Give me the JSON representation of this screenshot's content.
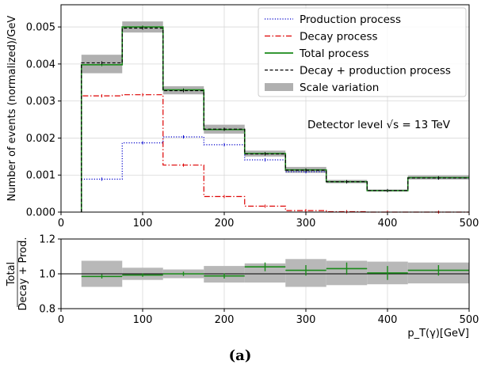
{
  "chart_data": [
    {
      "type": "line",
      "x_edges": [
        25,
        75,
        125,
        175,
        225,
        275,
        325,
        375,
        425,
        500
      ],
      "xlim": [
        0,
        500
      ],
      "ylim": [
        0,
        0.0056
      ],
      "xticks": [
        "0",
        "100",
        "200",
        "300",
        "400",
        "500"
      ],
      "yticks": [
        "0.000",
        "0.001",
        "0.002",
        "0.003",
        "0.004",
        "0.005"
      ],
      "ylabel": "Number of events (normalized)/GeV",
      "grid": true,
      "legend_position": "top-right",
      "annotation": "Detector level √s = 13 TeV",
      "series": [
        {
          "name": "Production process",
          "style": "dotted",
          "color": "#0000cc",
          "values": [
            0.00089,
            0.00187,
            0.00203,
            0.00182,
            0.00141,
            0.00109,
            0.00082,
            0.00058,
            0.00092
          ]
        },
        {
          "name": "Decay process",
          "style": "dashdot",
          "color": "#dd0000",
          "values": [
            0.00314,
            0.00317,
            0.00127,
            0.00042,
            0.00016,
            4e-05,
            1e-05,
            0.0,
            0.0
          ]
        },
        {
          "name": "Total process",
          "style": "solid",
          "color": "#1a8a1a",
          "values": [
            0.00398,
            0.005,
            0.0033,
            0.00223,
            0.00158,
            0.00114,
            0.00082,
            0.00058,
            0.00093
          ]
        },
        {
          "name": "Decay + production process",
          "style": "dashed",
          "color": "#000000",
          "values": [
            0.00403,
            0.00497,
            0.00328,
            0.00224,
            0.00157,
            0.00113,
            0.00082,
            0.00058,
            0.00092
          ]
        }
      ],
      "scale_variation": {
        "name": "Scale variation",
        "color": "#b0b0b0",
        "low": [
          0.00375,
          0.00485,
          0.00318,
          0.00212,
          0.0015,
          0.00106,
          0.00078,
          0.00056,
          0.00088
        ],
        "high": [
          0.00425,
          0.00515,
          0.0034,
          0.00236,
          0.00166,
          0.00122,
          0.00087,
          0.00061,
          0.00099
        ]
      }
    },
    {
      "type": "scatter",
      "xlim": [
        0,
        500
      ],
      "ylim": [
        0.8,
        1.2
      ],
      "xticks": [
        "0",
        "100",
        "200",
        "300",
        "400",
        "500"
      ],
      "yticks": [
        "0.8",
        "1.0",
        "1.2"
      ],
      "xlabel": "p_T(γ)[GeV]",
      "ylabel_top": "Total",
      "ylabel_bottom": "Decay + Prod.",
      "reference": 1.0,
      "bins": [
        {
          "x0": 25,
          "x1": 75,
          "y": 0.985,
          "err": 0.012,
          "band": [
            0.925,
            1.075
          ]
        },
        {
          "x0": 75,
          "x1": 125,
          "y": 0.993,
          "err": 0.01,
          "band": [
            0.965,
            1.035
          ]
        },
        {
          "x0": 125,
          "x1": 175,
          "y": 1.0,
          "err": 0.012,
          "band": [
            0.975,
            1.025
          ]
        },
        {
          "x0": 175,
          "x1": 225,
          "y": 0.988,
          "err": 0.015,
          "band": [
            0.95,
            1.045
          ]
        },
        {
          "x0": 225,
          "x1": 275,
          "y": 1.04,
          "err": 0.025,
          "band": [
            0.95,
            1.06
          ]
        },
        {
          "x0": 275,
          "x1": 325,
          "y": 1.02,
          "err": 0.03,
          "band": [
            0.925,
            1.085
          ]
        },
        {
          "x0": 325,
          "x1": 375,
          "y": 1.03,
          "err": 0.035,
          "band": [
            0.935,
            1.075
          ]
        },
        {
          "x0": 375,
          "x1": 425,
          "y": 1.005,
          "err": 0.04,
          "band": [
            0.94,
            1.07
          ]
        },
        {
          "x0": 425,
          "x1": 500,
          "y": 1.02,
          "err": 0.03,
          "band": [
            0.945,
            1.065
          ]
        }
      ]
    }
  ],
  "caption": "(a)"
}
